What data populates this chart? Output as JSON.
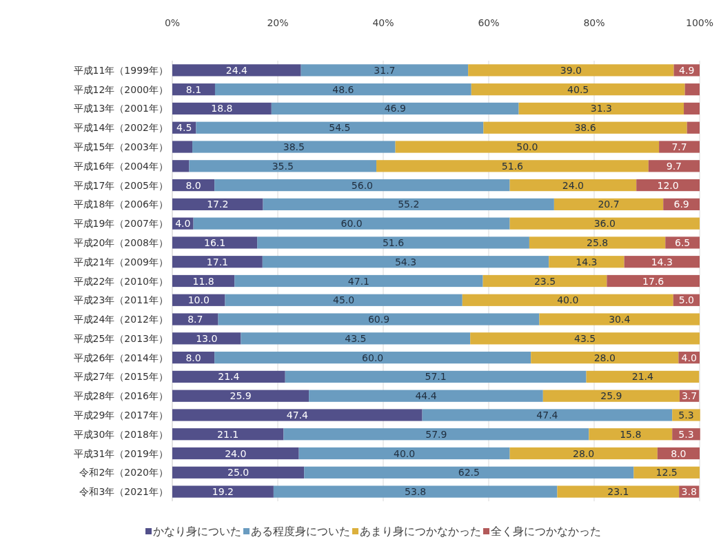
{
  "chart_data": {
    "type": "bar",
    "orientation": "horizontal",
    "stacked": true,
    "categories": [
      "平成11年（1999年）",
      "平成12年（2000年）",
      "平成13年（2001年）",
      "平成14年（2002年）",
      "平成15年（2003年）",
      "平成16年（2004年）",
      "平成17年（2005年）",
      "平成18年（2006年）",
      "平成19年（2007年）",
      "平成20年（2008年）",
      "平成21年（2009年）",
      "平成22年（2010年）",
      "平成23年（2011年）",
      "平成24年（2012年）",
      "平成25年（2013年）",
      "平成26年（2014年）",
      "平成27年（2015年）",
      "平成28年（2016年）",
      "平成29年（2017年）",
      "平成30年（2018年）",
      "平成31年（2019年）",
      "令和2年（2020年）",
      "令和3年（2021年）"
    ],
    "series": [
      {
        "name": "かなり身についた",
        "color": "#52508a",
        "values": [
          24.4,
          8.1,
          18.8,
          4.5,
          3.8,
          3.2,
          8.0,
          17.2,
          4.0,
          16.1,
          17.1,
          11.8,
          10.0,
          8.7,
          13.0,
          8.0,
          21.4,
          25.9,
          47.4,
          21.1,
          24.0,
          25.0,
          19.2
        ],
        "value_labels": [
          "24.4",
          "8.1",
          "18.8",
          "4.5",
          null,
          null,
          "8.0",
          "17.2",
          "4.0",
          "16.1",
          "17.1",
          "11.8",
          "10.0",
          "8.7",
          "13.0",
          "8.0",
          "21.4",
          "25.9",
          "47.4",
          "21.1",
          "24.0",
          "25.0",
          "19.2"
        ]
      },
      {
        "name": "ある程度身についた",
        "color": "#6a9cc0",
        "values": [
          31.7,
          48.6,
          46.9,
          54.5,
          38.5,
          35.5,
          56.0,
          55.2,
          60.0,
          51.6,
          54.3,
          47.1,
          45.0,
          60.9,
          43.5,
          60.0,
          57.1,
          44.4,
          47.4,
          57.9,
          40.0,
          62.5,
          53.8
        ],
        "value_labels": [
          "31.7",
          "48.6",
          "46.9",
          "54.5",
          "38.5",
          "35.5",
          "56.0",
          "55.2",
          "60.0",
          "51.6",
          "54.3",
          "47.1",
          "45.0",
          "60.9",
          "43.5",
          "60.0",
          "57.1",
          "44.4",
          "47.4",
          "57.9",
          "40.0",
          "62.5",
          "53.8"
        ]
      },
      {
        "name": "あまり身につかなかった",
        "color": "#dcb03c",
        "values": [
          39.0,
          40.5,
          31.3,
          38.6,
          50.0,
          51.6,
          24.0,
          20.7,
          36.0,
          25.8,
          14.3,
          23.5,
          40.0,
          30.4,
          43.5,
          28.0,
          21.4,
          25.9,
          5.3,
          15.8,
          28.0,
          12.5,
          23.1
        ],
        "value_labels": [
          "39.0",
          "40.5",
          "31.3",
          "38.6",
          "50.0",
          "51.6",
          "24.0",
          "20.7",
          "36.0",
          "25.8",
          "14.3",
          "23.5",
          "40.0",
          "30.4",
          "43.5",
          "28.0",
          "21.4",
          "25.9",
          "5.3",
          "15.8",
          "28.0",
          "12.5",
          "23.1"
        ]
      },
      {
        "name": "全く身につかなかった",
        "color": "#b35a5a",
        "values": [
          4.9,
          2.8,
          3.0,
          2.4,
          7.7,
          9.7,
          12.0,
          6.9,
          0,
          6.5,
          14.3,
          17.6,
          5.0,
          0,
          0,
          4.0,
          0,
          3.7,
          0,
          5.3,
          8.0,
          0,
          3.8
        ],
        "value_labels": [
          "4.9",
          null,
          null,
          null,
          "7.7",
          "9.7",
          "12.0",
          "6.9",
          null,
          "6.5",
          "14.3",
          "17.6",
          "5.0",
          null,
          null,
          "4.0",
          null,
          "3.7",
          null,
          "5.3",
          "8.0",
          null,
          "3.8"
        ]
      }
    ],
    "xlim": [
      0,
      100
    ],
    "xticks": [
      {
        "value": 0,
        "label": "0%"
      },
      {
        "value": 20,
        "label": "20%"
      },
      {
        "value": 40,
        "label": "40%"
      },
      {
        "value": 60,
        "label": "60%"
      },
      {
        "value": 80,
        "label": "80%"
      },
      {
        "value": 100,
        "label": "100%"
      }
    ],
    "grid": "x",
    "legend": "bottom"
  }
}
